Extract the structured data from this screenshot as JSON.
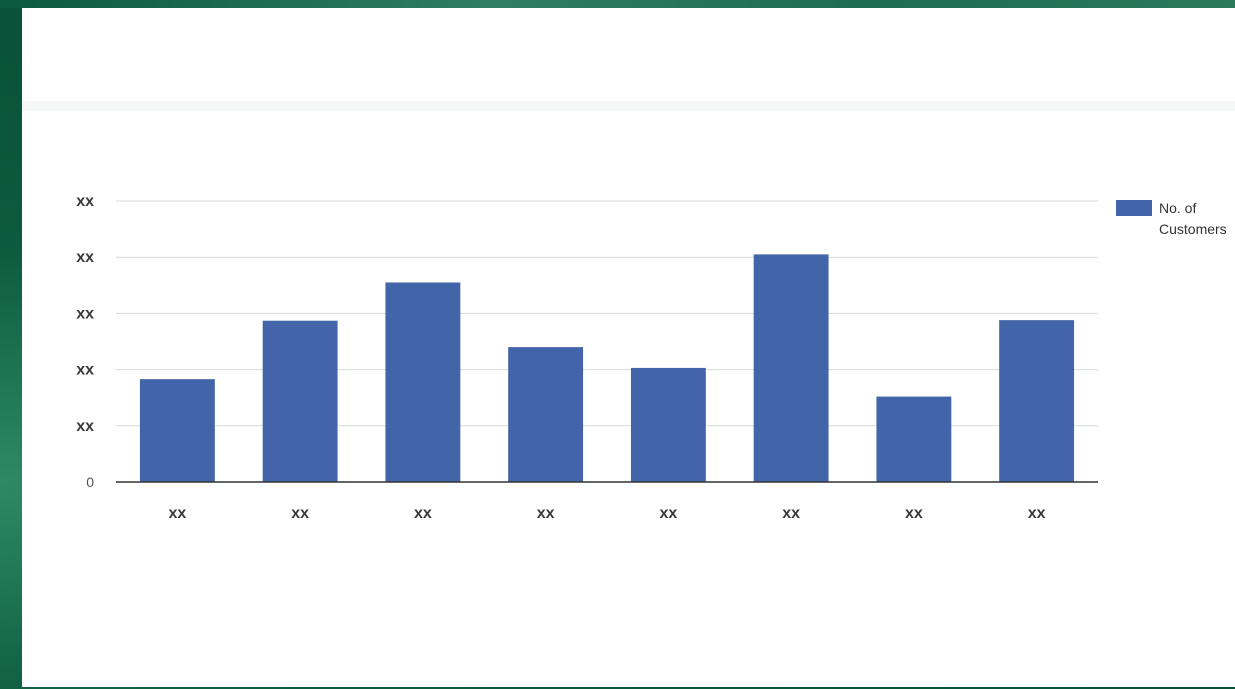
{
  "chart_data": {
    "type": "bar",
    "categories": [
      "xx",
      "xx",
      "xx",
      "xx",
      "xx",
      "xx",
      "xx",
      "xx"
    ],
    "series": [
      {
        "name": "No. of Customers",
        "color": "#4264a8",
        "values": [
          1.83,
          2.87,
          3.55,
          2.4,
          2.03,
          4.05,
          1.52,
          2.88
        ]
      }
    ],
    "y_tick_labels": [
      "0",
      "xx",
      "xx",
      "xx",
      "xx",
      "xx"
    ],
    "ylim": [
      0,
      5
    ],
    "grid": true,
    "legend_position": "right",
    "title": "",
    "xlabel": "",
    "ylabel": ""
  },
  "colors": {
    "frame": "#0c5a3f",
    "panel": "#ffffff",
    "gridline": "#d9d9d9",
    "axis": "#333333"
  }
}
